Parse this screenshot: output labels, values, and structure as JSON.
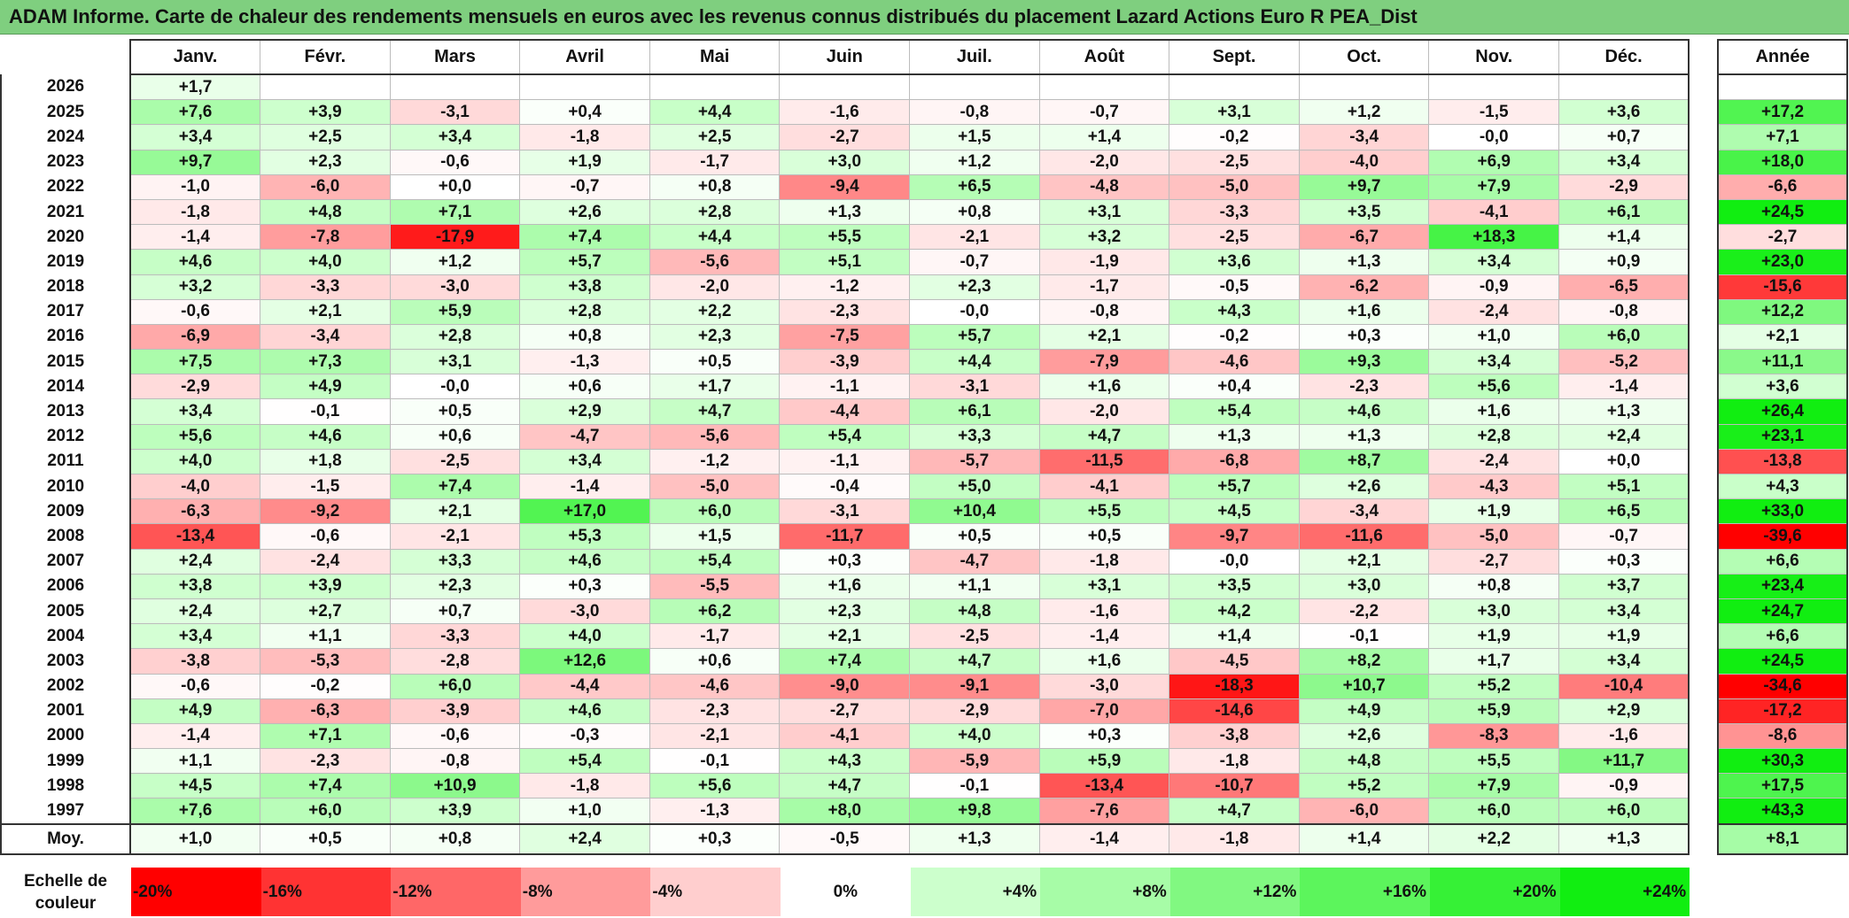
{
  "title": "ADAM Informe. Carte de chaleur des rendements mensuels en euros avec les revenus connus distribués du placement Lazard Actions Euro R PEA_Dist",
  "months": [
    "Janv.",
    "Févr.",
    "Mars",
    "Avril",
    "Mai",
    "Juin",
    "Juil.",
    "Août",
    "Sept.",
    "Oct.",
    "Nov.",
    "Déc."
  ],
  "annual_header": "Année",
  "avg_label": "Moy.",
  "scale_title": "Echelle de\ncouleur",
  "scale": [
    "-20%",
    "-16%",
    "-12%",
    "-8%",
    "-4%",
    "0%",
    "+4%",
    "+8%",
    "+12%",
    "+16%",
    "+20%",
    "+24%"
  ],
  "chart_data": {
    "type": "heatmap",
    "title": "ADAM Informe. Carte de chaleur des rendements mensuels en euros avec les revenus connus distribués du placement Lazard Actions Euro R PEA_Dist",
    "x_categories": [
      "Janv.",
      "Févr.",
      "Mars",
      "Avril",
      "Mai",
      "Juin",
      "Juil.",
      "Août",
      "Sept.",
      "Oct.",
      "Nov.",
      "Déc."
    ],
    "rows": [
      {
        "year": "2026",
        "values": [
          "+1,7",
          "",
          "",
          "",
          "",
          "",
          "",
          "",
          "",
          "",
          "",
          ""
        ],
        "annual": ""
      },
      {
        "year": "2025",
        "values": [
          "+7,6",
          "+3,9",
          "-3,1",
          "+0,4",
          "+4,4",
          "-1,6",
          "-0,8",
          "-0,7",
          "+3,1",
          "+1,2",
          "-1,5",
          "+3,6"
        ],
        "annual": "+17,2"
      },
      {
        "year": "2024",
        "values": [
          "+3,4",
          "+2,5",
          "+3,4",
          "-1,8",
          "+2,5",
          "-2,7",
          "+1,5",
          "+1,4",
          "-0,2",
          "-3,4",
          "-0,0",
          "+0,7"
        ],
        "annual": "+7,1"
      },
      {
        "year": "2023",
        "values": [
          "+9,7",
          "+2,3",
          "-0,6",
          "+1,9",
          "-1,7",
          "+3,0",
          "+1,2",
          "-2,0",
          "-2,5",
          "-4,0",
          "+6,9",
          "+3,4"
        ],
        "annual": "+18,0"
      },
      {
        "year": "2022",
        "values": [
          "-1,0",
          "-6,0",
          "+0,0",
          "-0,7",
          "+0,8",
          "-9,4",
          "+6,5",
          "-4,8",
          "-5,0",
          "+9,7",
          "+7,9",
          "-2,9"
        ],
        "annual": "-6,6"
      },
      {
        "year": "2021",
        "values": [
          "-1,8",
          "+4,8",
          "+7,1",
          "+2,6",
          "+2,8",
          "+1,3",
          "+0,8",
          "+3,1",
          "-3,3",
          "+3,5",
          "-4,1",
          "+6,1"
        ],
        "annual": "+24,5"
      },
      {
        "year": "2020",
        "values": [
          "-1,4",
          "-7,8",
          "-17,9",
          "+7,4",
          "+4,4",
          "+5,5",
          "-2,1",
          "+3,2",
          "-2,5",
          "-6,7",
          "+18,3",
          "+1,4"
        ],
        "annual": "-2,7"
      },
      {
        "year": "2019",
        "values": [
          "+4,6",
          "+4,0",
          "+1,2",
          "+5,7",
          "-5,6",
          "+5,1",
          "-0,7",
          "-1,9",
          "+3,6",
          "+1,3",
          "+3,4",
          "+0,9"
        ],
        "annual": "+23,0"
      },
      {
        "year": "2018",
        "values": [
          "+3,2",
          "-3,3",
          "-3,0",
          "+3,8",
          "-2,0",
          "-1,2",
          "+2,3",
          "-1,7",
          "-0,5",
          "-6,2",
          "-0,9",
          "-6,5"
        ],
        "annual": "-15,6"
      },
      {
        "year": "2017",
        "values": [
          "-0,6",
          "+2,1",
          "+5,9",
          "+2,8",
          "+2,2",
          "-2,3",
          "-0,0",
          "-0,8",
          "+4,3",
          "+1,6",
          "-2,4",
          "-0,8"
        ],
        "annual": "+12,2"
      },
      {
        "year": "2016",
        "values": [
          "-6,9",
          "-3,4",
          "+2,8",
          "+0,8",
          "+2,3",
          "-7,5",
          "+5,7",
          "+2,1",
          "-0,2",
          "+0,3",
          "+1,0",
          "+6,0"
        ],
        "annual": "+2,1"
      },
      {
        "year": "2015",
        "values": [
          "+7,5",
          "+7,3",
          "+3,1",
          "-1,3",
          "+0,5",
          "-3,9",
          "+4,4",
          "-7,9",
          "-4,6",
          "+9,3",
          "+3,4",
          "-5,2"
        ],
        "annual": "+11,1"
      },
      {
        "year": "2014",
        "values": [
          "-2,9",
          "+4,9",
          "-0,0",
          "+0,6",
          "+1,7",
          "-1,1",
          "-3,1",
          "+1,6",
          "+0,4",
          "-2,3",
          "+5,6",
          "-1,4"
        ],
        "annual": "+3,6"
      },
      {
        "year": "2013",
        "values": [
          "+3,4",
          "-0,1",
          "+0,5",
          "+2,9",
          "+4,7",
          "-4,4",
          "+6,1",
          "-2,0",
          "+5,4",
          "+4,6",
          "+1,6",
          "+1,3"
        ],
        "annual": "+26,4"
      },
      {
        "year": "2012",
        "values": [
          "+5,6",
          "+4,6",
          "+0,6",
          "-4,7",
          "-5,6",
          "+5,4",
          "+3,3",
          "+4,7",
          "+1,3",
          "+1,3",
          "+2,8",
          "+2,4"
        ],
        "annual": "+23,1"
      },
      {
        "year": "2011",
        "values": [
          "+4,0",
          "+1,8",
          "-2,5",
          "+3,4",
          "-1,2",
          "-1,1",
          "-5,7",
          "-11,5",
          "-6,8",
          "+8,7",
          "-2,4",
          "+0,0"
        ],
        "annual": "-13,8"
      },
      {
        "year": "2010",
        "values": [
          "-4,0",
          "-1,5",
          "+7,4",
          "-1,4",
          "-5,0",
          "-0,4",
          "+5,0",
          "-4,1",
          "+5,7",
          "+2,6",
          "-4,3",
          "+5,1"
        ],
        "annual": "+4,3"
      },
      {
        "year": "2009",
        "values": [
          "-6,3",
          "-9,2",
          "+2,1",
          "+17,0",
          "+6,0",
          "-3,1",
          "+10,4",
          "+5,5",
          "+4,5",
          "-3,4",
          "+1,9",
          "+6,5"
        ],
        "annual": "+33,0"
      },
      {
        "year": "2008",
        "values": [
          "-13,4",
          "-0,6",
          "-2,1",
          "+5,3",
          "+1,5",
          "-11,7",
          "+0,5",
          "+0,5",
          "-9,7",
          "-11,6",
          "-5,0",
          "-0,7"
        ],
        "annual": "-39,6"
      },
      {
        "year": "2007",
        "values": [
          "+2,4",
          "-2,4",
          "+3,3",
          "+4,6",
          "+5,4",
          "+0,3",
          "-4,7",
          "-1,8",
          "-0,0",
          "+2,1",
          "-2,7",
          "+0,3"
        ],
        "annual": "+6,6"
      },
      {
        "year": "2006",
        "values": [
          "+3,8",
          "+3,9",
          "+2,3",
          "+0,3",
          "-5,5",
          "+1,6",
          "+1,1",
          "+3,1",
          "+3,5",
          "+3,0",
          "+0,8",
          "+3,7"
        ],
        "annual": "+23,4"
      },
      {
        "year": "2005",
        "values": [
          "+2,4",
          "+2,7",
          "+0,7",
          "-3,0",
          "+6,2",
          "+2,3",
          "+4,8",
          "-1,6",
          "+4,2",
          "-2,2",
          "+3,0",
          "+3,4"
        ],
        "annual": "+24,7"
      },
      {
        "year": "2004",
        "values": [
          "+3,4",
          "+1,1",
          "-3,3",
          "+4,0",
          "-1,7",
          "+2,1",
          "-2,5",
          "-1,4",
          "+1,4",
          "-0,1",
          "+1,9",
          "+1,9"
        ],
        "annual": "+6,6"
      },
      {
        "year": "2003",
        "values": [
          "-3,8",
          "-5,3",
          "-2,8",
          "+12,6",
          "+0,6",
          "+7,4",
          "+4,7",
          "+1,6",
          "-4,5",
          "+8,2",
          "+1,7",
          "+3,4"
        ],
        "annual": "+24,5"
      },
      {
        "year": "2002",
        "values": [
          "-0,6",
          "-0,2",
          "+6,0",
          "-4,4",
          "-4,6",
          "-9,0",
          "-9,1",
          "-3,0",
          "-18,3",
          "+10,7",
          "+5,2",
          "-10,4"
        ],
        "annual": "-34,6"
      },
      {
        "year": "2001",
        "values": [
          "+4,9",
          "-6,3",
          "-3,9",
          "+4,6",
          "-2,3",
          "-2,7",
          "-2,9",
          "-7,0",
          "-14,6",
          "+4,9",
          "+5,9",
          "+2,9"
        ],
        "annual": "-17,2"
      },
      {
        "year": "2000",
        "values": [
          "-1,4",
          "+7,1",
          "-0,6",
          "-0,3",
          "-2,1",
          "-4,1",
          "+4,0",
          "+0,3",
          "-3,8",
          "+2,6",
          "-8,3",
          "-1,6"
        ],
        "annual": "-8,6"
      },
      {
        "year": "1999",
        "values": [
          "+1,1",
          "-2,3",
          "-0,8",
          "+5,4",
          "-0,1",
          "+4,3",
          "-5,9",
          "+5,9",
          "-1,8",
          "+4,8",
          "+5,5",
          "+11,7"
        ],
        "annual": "+30,3"
      },
      {
        "year": "1998",
        "values": [
          "+4,5",
          "+7,4",
          "+10,9",
          "-1,8",
          "+5,6",
          "+4,7",
          "-0,1",
          "-13,4",
          "-10,7",
          "+5,2",
          "+7,9",
          "-0,9"
        ],
        "annual": "+17,5"
      },
      {
        "year": "1997",
        "values": [
          "+7,6",
          "+6,0",
          "+3,9",
          "+1,0",
          "-1,3",
          "+8,0",
          "+9,8",
          "-7,6",
          "+4,7",
          "-6,0",
          "+6,0",
          "+6,0"
        ],
        "annual": "+43,3"
      }
    ],
    "averages": [
      "+1,0",
      "+0,5",
      "+0,8",
      "+2,4",
      "+0,3",
      "-0,5",
      "+1,3",
      "-1,4",
      "-1,8",
      "+1,4",
      "+2,2",
      "+1,3"
    ],
    "annual_average": "+8,1"
  }
}
